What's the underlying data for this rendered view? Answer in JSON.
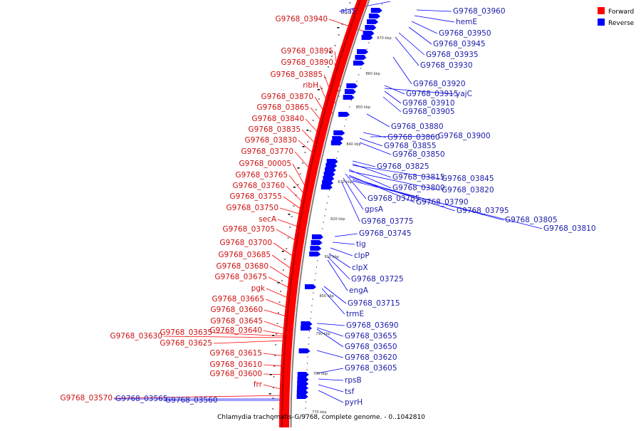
{
  "caption": "Chlamydia trachomatis-G/9768, complete genome. - 0..1042810",
  "legend": [
    {
      "label": "Forward",
      "color": "#ff0000"
    },
    {
      "label": "Reverse",
      "color": "#0000ff"
    }
  ],
  "colors": {
    "forward": "#ff0000",
    "forward_text": "#cc1111",
    "reverse": "#0000ff",
    "reverse_text": "#1a1aaa",
    "backbone": "#808080"
  },
  "ticks": [
    "870 kbp",
    "860 kbp",
    "850 kbp",
    "840 kbp",
    "830 kbp",
    "820 kbp",
    "810 kbp",
    "800 kbp",
    "790 kbp",
    "780 kbp",
    "770 kbp"
  ],
  "forward_labels": [
    "G9768_03940",
    "G9768_03895",
    "G9768_03890",
    "G9768_03885",
    "ribH",
    "G9768_03870",
    "G9768_03865",
    "G9768_03840",
    "G9768_03835",
    "G9768_03830",
    "G9768_03770",
    "G9768_00005",
    "G9768_03765",
    "G9768_03760",
    "G9768_03755",
    "G9768_03750",
    "secA",
    "G9768_03705",
    "G9768_03700",
    "G9768_03685",
    "G9768_03680",
    "G9768_03675",
    "pgk",
    "G9768_03665",
    "G9768_03660",
    "G9768_03645",
    "G9768_03640",
    "G9768_03635",
    "G9768_03630",
    "G9768_03625",
    "G9768_03615",
    "G9768_03610",
    "G9768_03600",
    "frr",
    "G9768_03570"
  ],
  "reverse_labels": [
    "alaS",
    "G9768_03960",
    "hemE",
    "G9768_03950",
    "G9768_03945",
    "G9768_03935",
    "G9768_03930",
    "G9768_03920",
    "G9768_03915",
    "yajC",
    "G9768_03910",
    "G9768_03905",
    "G9768_03880",
    "G9768_03860",
    "G9768_03900",
    "G9768_03855",
    "G9768_03850",
    "G9768_03825",
    "G9768_03815",
    "G9768_03845",
    "G9768_03800",
    "G9768_03820",
    "G9768_03785",
    "G9768_03790",
    "G9768_03795",
    "gpsA",
    "G9768_03805",
    "G9768_03775",
    "G9768_03810",
    "G9768_03745",
    "tig",
    "clpP",
    "clpX",
    "G9768_03725",
    "engA",
    "G9768_03715",
    "trmE",
    "G9768_03690",
    "G9768_03655",
    "G9768_03650",
    "G9768_03620",
    "G9768_03605",
    "rpsB",
    "tsf",
    "pyrH",
    "G9768_03565",
    "G9768_03560"
  ]
}
